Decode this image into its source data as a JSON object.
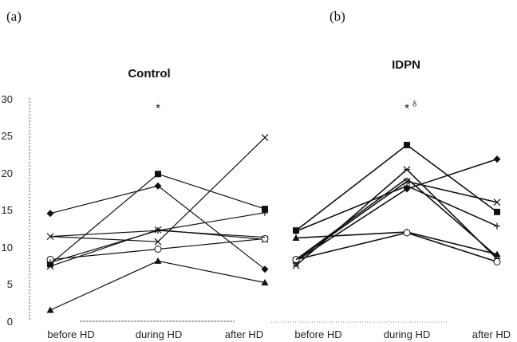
{
  "chart_data": [
    {
      "type": "line",
      "panel_label": "(a)",
      "title": "Control",
      "categories": [
        "before HD",
        "during HD",
        "after HD"
      ],
      "ylim": [
        0,
        30
      ],
      "yticks": [
        "0",
        "5",
        "10",
        "15",
        "20",
        "25",
        "30"
      ],
      "annotations": [
        {
          "text": "*",
          "superscript": "",
          "category": "during HD",
          "y": 28.8
        }
      ],
      "series": [
        {
          "marker": "diamond",
          "values": [
            14.5,
            18.2,
            7.0
          ]
        },
        {
          "marker": "square",
          "values": [
            7.7,
            19.8,
            15.1
          ]
        },
        {
          "marker": "triangle",
          "values": [
            1.5,
            8.1,
            5.2
          ]
        },
        {
          "marker": "x",
          "values": [
            11.4,
            10.7,
            24.7
          ]
        },
        {
          "marker": "asterisk",
          "values": [
            7.4,
            12.3,
            11.0
          ]
        },
        {
          "marker": "circle",
          "values": [
            8.3,
            9.7,
            11.1
          ]
        },
        {
          "marker": "plus",
          "values": [
            7.9,
            12.2,
            14.6
          ]
        },
        {
          "marker": "none",
          "values": [
            11.4,
            12.2,
            11.3
          ]
        }
      ]
    },
    {
      "type": "line",
      "panel_label": "(b)",
      "title": "IDPN",
      "categories": [
        "before HD",
        "during HD",
        "after HD"
      ],
      "ylim": [
        0,
        30
      ],
      "annotations": [
        {
          "text": "*",
          "superscript": "δ",
          "category": "during HD",
          "y": 28.8
        }
      ],
      "series": [
        {
          "marker": "diamond",
          "values": [
            8.1,
            17.8,
            21.8
          ]
        },
        {
          "marker": "square",
          "values": [
            12.2,
            23.7,
            14.7
          ]
        },
        {
          "marker": "triangle",
          "values": [
            11.2,
            12.0,
            9.0
          ]
        },
        {
          "marker": "x",
          "values": [
            8.2,
            18.8,
            16.0
          ]
        },
        {
          "marker": "asterisk",
          "values": [
            7.5,
            20.4,
            8.4
          ]
        },
        {
          "marker": "circle",
          "values": [
            8.3,
            11.9,
            8.0
          ]
        },
        {
          "marker": "plus",
          "values": [
            12.1,
            18.2,
            12.8
          ]
        },
        {
          "marker": "none",
          "values": [
            8.3,
            19.2,
            8.7
          ]
        }
      ]
    }
  ]
}
